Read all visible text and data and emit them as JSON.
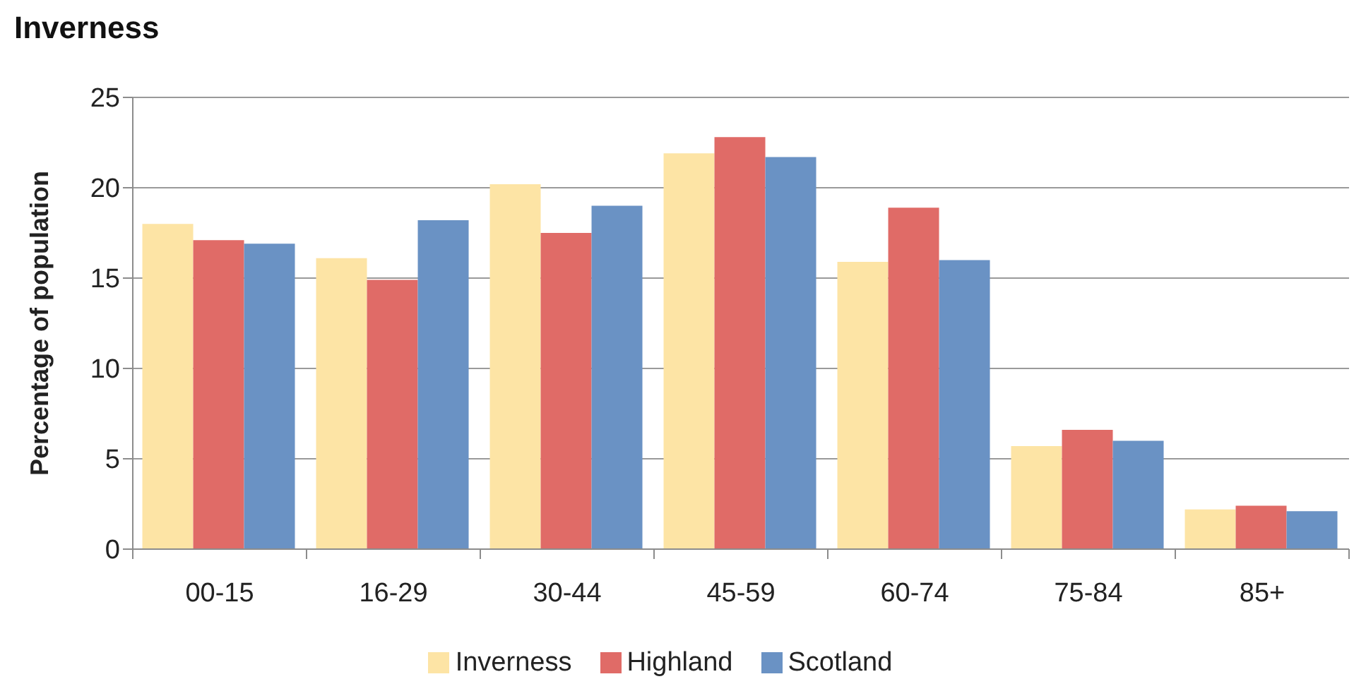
{
  "chart_data": {
    "type": "bar",
    "title": "Inverness",
    "ylabel": "Percentage of population",
    "categories": [
      "00-15",
      "16-29",
      "30-44",
      "45-59",
      "60-74",
      "75-84",
      "85+"
    ],
    "series": [
      {
        "name": "Inverness",
        "color": "#fde4a5",
        "values": [
          18.0,
          16.1,
          20.2,
          21.9,
          15.9,
          5.7,
          2.2
        ]
      },
      {
        "name": "Highland",
        "color": "#e06b67",
        "values": [
          17.1,
          14.9,
          17.5,
          22.8,
          18.9,
          6.6,
          2.4
        ]
      },
      {
        "name": "Scotland",
        "color": "#6a92c4",
        "values": [
          16.9,
          18.2,
          19.0,
          21.7,
          16.0,
          6.0,
          2.1
        ]
      }
    ],
    "ylim": [
      0,
      25
    ],
    "yticks": [
      0,
      5,
      10,
      15,
      20,
      25
    ],
    "grid": "y",
    "legend": "bottom"
  }
}
